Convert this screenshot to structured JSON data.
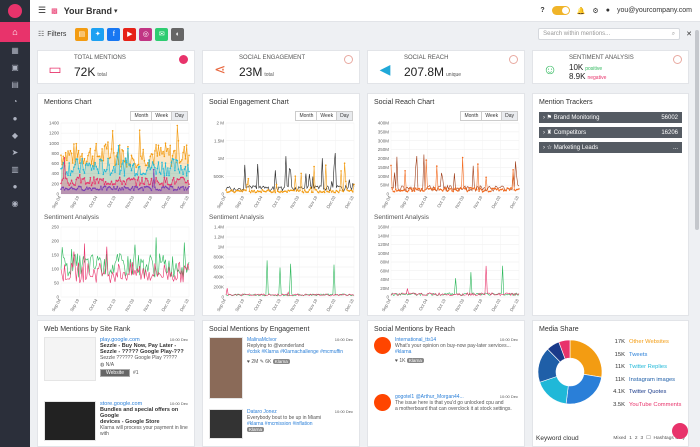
{
  "topbar": {
    "brand": "Your Brand",
    "user_email": "you@yourcompany.com",
    "help": "?"
  },
  "filters": {
    "label": "Filters",
    "search_placeholder": "Search within mentions...",
    "sources": [
      {
        "name": "document-icon",
        "color": "#f39c12"
      },
      {
        "name": "twitter-icon",
        "color": "#1da1f2"
      },
      {
        "name": "facebook-icon",
        "color": "#1877f2"
      },
      {
        "name": "youtube-icon",
        "color": "#e62117"
      },
      {
        "name": "instagram-icon",
        "color": "#c13584"
      },
      {
        "name": "forum-icon",
        "color": "#2ecc71"
      },
      {
        "name": "news-icon",
        "color": "#666666"
      }
    ]
  },
  "stats": [
    {
      "label": "TOTAL MENTIONS",
      "value": "72K",
      "unit": "total",
      "icon": "chat-icon",
      "color": "#e8336b"
    },
    {
      "label": "SOCIAL ENGAGEMENT",
      "value": "23M",
      "unit": "total",
      "icon": "share-icon",
      "color": "#e8663d"
    },
    {
      "label": "SOCIAL REACH",
      "value": "207.8M",
      "unit": "unique",
      "icon": "megaphone-icon",
      "color": "#20a8d8"
    },
    {
      "label": "SENTIMENT ANALYSIS",
      "pos_value": "10K",
      "pos_label": "positive",
      "neg_value": "8.9K",
      "neg_label": "negative",
      "icon": "smile-icon",
      "color": "#2eb85c"
    }
  ],
  "charts": {
    "mentions": {
      "title": "Mentions Chart",
      "sub": "Sentiment Analysis",
      "range": [
        "Month",
        "Week",
        "Day"
      ]
    },
    "engagement": {
      "title": "Social Engagement Chart",
      "sub": "Sentiment Analysis",
      "range": [
        "Month",
        "Week",
        "Day"
      ]
    },
    "reach": {
      "title": "Social Reach Chart",
      "sub": "Sentiment Analysis",
      "range": [
        "Month",
        "Week",
        "Day"
      ]
    }
  },
  "chart_data": [
    {
      "type": "area",
      "title": "Mentions Chart",
      "ylim": [
        0,
        1400
      ],
      "y_ticks": [
        "1400",
        "1200",
        "1000",
        "800",
        "600",
        "400",
        "200",
        "0"
      ],
      "x_ticks": [
        "Sep 04",
        "Sep 19",
        "Oct 04",
        "Oct 19",
        "Nov 03",
        "Nov 18",
        "Dec 03",
        "Dec 18"
      ]
    },
    {
      "type": "line",
      "title": "Sentiment Analysis",
      "ylim": [
        0,
        250
      ],
      "y_ticks": [
        "250",
        "200",
        "150",
        "100",
        "50",
        "0"
      ],
      "x_ticks": [
        "Sep 04",
        "Sep 19",
        "Oct 04",
        "Oct 19",
        "Nov 03",
        "Nov 18",
        "Dec 03",
        "Dec 18"
      ]
    },
    {
      "type": "line",
      "title": "Social Engagement Chart",
      "ylim": [
        0,
        2000000
      ],
      "y_ticks": [
        "2 M",
        "1.5M",
        "1M",
        "500K",
        "0"
      ],
      "x_ticks": [
        "Sep 04",
        "Sep 19",
        "Oct 04",
        "Oct 19",
        "Nov 03",
        "Nov 18",
        "Dec 03",
        "Dec 18"
      ]
    },
    {
      "type": "line",
      "title": "Sentiment Analysis",
      "ylim": [
        0,
        1400000
      ],
      "y_ticks": [
        "1.4M",
        "1.2M",
        "1M",
        "800K",
        "600K",
        "400K",
        "200K",
        "0"
      ],
      "x_ticks": [
        "Sep 04",
        "Sep 19",
        "Oct 04",
        "Oct 19",
        "Nov 03",
        "Nov 18",
        "Dec 03",
        "Dec 18"
      ]
    },
    {
      "type": "line",
      "title": "Social Reach Chart",
      "ylim": [
        0,
        400000000
      ],
      "y_ticks": [
        "400M",
        "350M",
        "300M",
        "250M",
        "200M",
        "150M",
        "100M",
        "50M",
        "0"
      ],
      "x_ticks": [
        "Sep 04",
        "Sep 19",
        "Oct 04",
        "Oct 19",
        "Nov 03",
        "Nov 18",
        "Dec 03",
        "Dec 18"
      ]
    },
    {
      "type": "line",
      "title": "Sentiment Analysis",
      "ylim": [
        0,
        160000000
      ],
      "y_ticks": [
        "160M",
        "140M",
        "120M",
        "100M",
        "80M",
        "60M",
        "40M",
        "20M",
        "0"
      ],
      "x_ticks": [
        "Sep 04",
        "Sep 19",
        "Oct 04",
        "Oct 19",
        "Nov 03",
        "Nov 18",
        "Dec 03",
        "Dec 18"
      ]
    },
    {
      "type": "pie",
      "title": "Media Share",
      "labels": [
        "Other Websites",
        "Tweets",
        "Twitter Replies",
        "Instagram images",
        "Twitter Quotes",
        "YouTube Comments"
      ],
      "values": [
        17,
        15,
        11,
        11,
        4.1,
        3.5
      ],
      "display": [
        "17K",
        "15K",
        "11K",
        "11K",
        "4.1K",
        "3.5K"
      ],
      "colors": [
        "#f39c12",
        "#2a7fd8",
        "#20b8d8",
        "#1f5fa8",
        "#1a3a8a",
        "#e8336b"
      ]
    }
  ],
  "trackers": {
    "title": "Mention Trackers",
    "items": [
      {
        "label": "Brand Monitoring",
        "count": "56002"
      },
      {
        "label": "Competitors",
        "count": "16206"
      },
      {
        "label": "Marketing Leads",
        "count": "..."
      }
    ]
  },
  "web_mentions": {
    "title": "Web Mentions by Site Rank",
    "items": [
      {
        "domain": "play.google.com",
        "time": "10:00 Dec",
        "title": "Sezzle - Buy Now, Pay Later - ",
        "title2": "Sezzle - ????? Google Play-???",
        "snippet": "Sezzle ?????? Google Play ?????",
        "lang": "N/A",
        "button": "Website",
        "count": "#1"
      },
      {
        "domain": "store.google.com",
        "time": "10:00 Dec",
        "title": "Bundles and special offers on Google",
        "title2": "devices - Google Store",
        "snippet": "Klarna will process your payment in line with",
        "lang": "",
        "button": "",
        "count": ""
      }
    ]
  },
  "social_engagement": {
    "title": "Social Mentions by Engagement",
    "items": [
      {
        "user": "MalinaMcIvor",
        "time": "10:00 Dec",
        "text": "Replying to @wonderland",
        "tags": "#cdsk #Klarna #Klarnachallenge #mcmuffin",
        "likes": "2M",
        "comments": "6K",
        "shares": "",
        "badge": "Klarna"
      },
      {
        "user": "Dataro Jonez",
        "time": "10:00 Dec",
        "text": "Everybody bout to be up in Miami",
        "tags": "#klarna #mcmission #inflation",
        "likes": "",
        "comments": "",
        "shares": "",
        "badge": "Klarna"
      }
    ]
  },
  "social_reach": {
    "title": "Social Mentions by Reach",
    "items": [
      {
        "user": "International_tts14",
        "time": "10:00 Dec",
        "text": "What's your opinion on buy-now pay-later services...",
        "tags": "#klarna",
        "likes": "1K",
        "comments": "",
        "shares": "",
        "badge": "Klarna"
      },
      {
        "user": "gogotel1 @Arthur_Morgan44...",
        "time": "10:00 Dec",
        "text": "The issue here is that you'd go unlocked cpu and",
        "tags": "a motherboard that can overclock it at stock settings.",
        "likes": "",
        "comments": "",
        "shares": "",
        "badge": ""
      }
    ]
  },
  "media_share": {
    "title": "Media Share"
  },
  "keyword_cloud": {
    "title": "Keyword cloud",
    "mixed": "Mixed",
    "pages": [
      "1",
      "2",
      "3"
    ],
    "hashtags": "Hashtags Only"
  }
}
